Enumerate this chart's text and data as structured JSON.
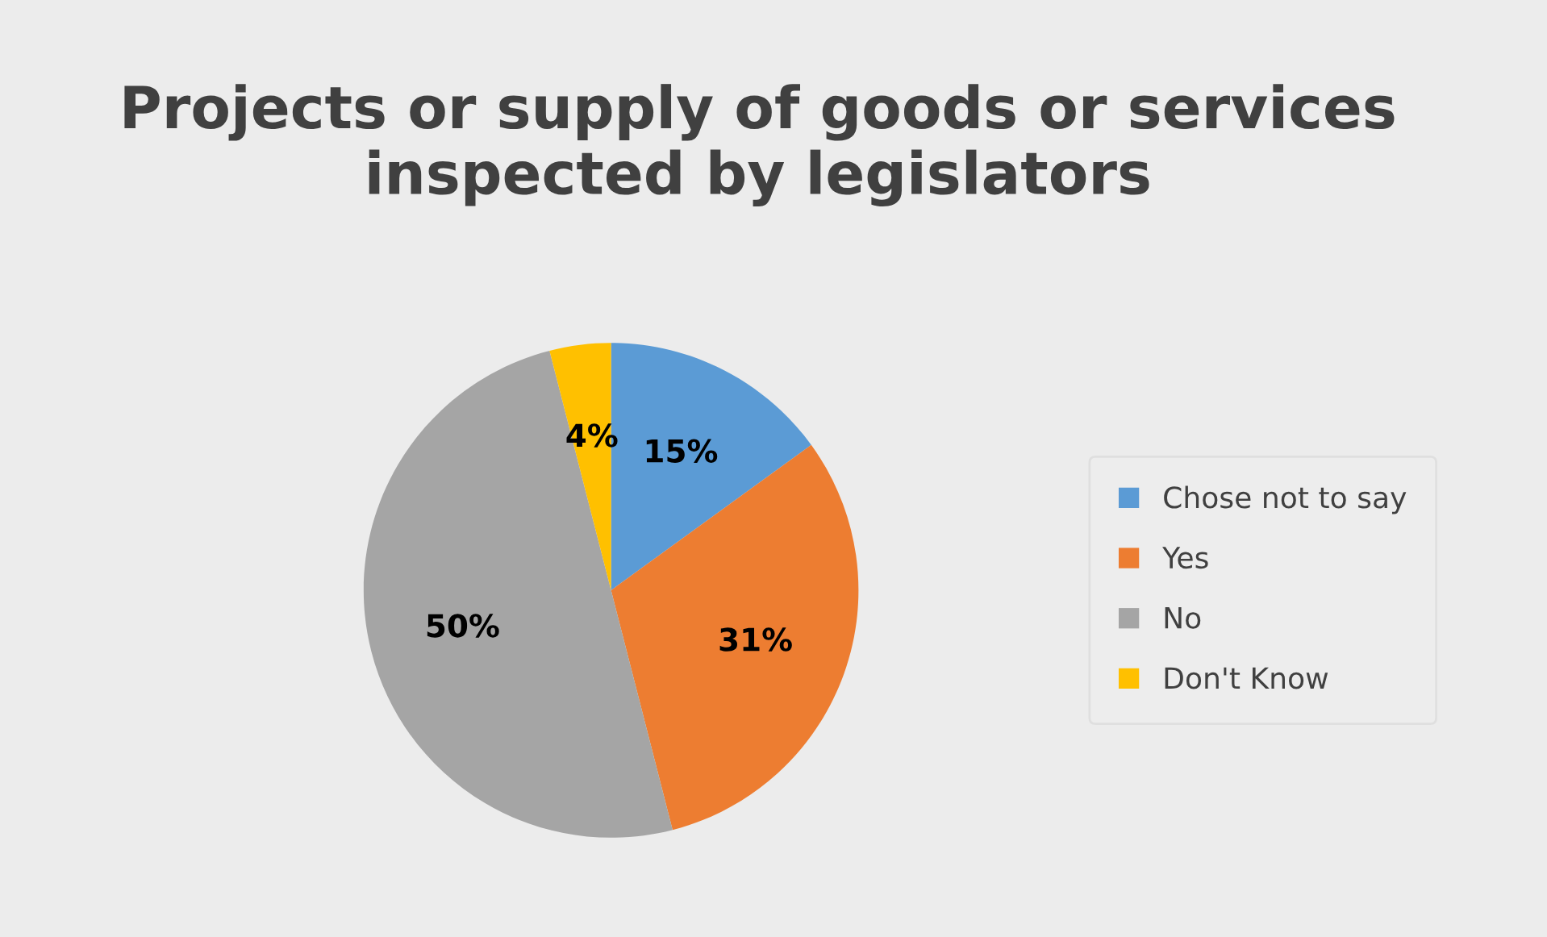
{
  "chart_data": {
    "type": "pie",
    "title": "Projects or supply of goods or services inspected by legislators",
    "categories": [
      "Chose not to say",
      "Yes",
      "No",
      "Don't Know"
    ],
    "values": [
      15,
      31,
      50,
      4
    ],
    "colors": [
      "#5b9bd5",
      "#ed7d31",
      "#a5a5a5",
      "#ffc000"
    ],
    "value_labels": [
      "15%",
      "31%",
      "50%",
      "4%"
    ],
    "legend": "right"
  }
}
